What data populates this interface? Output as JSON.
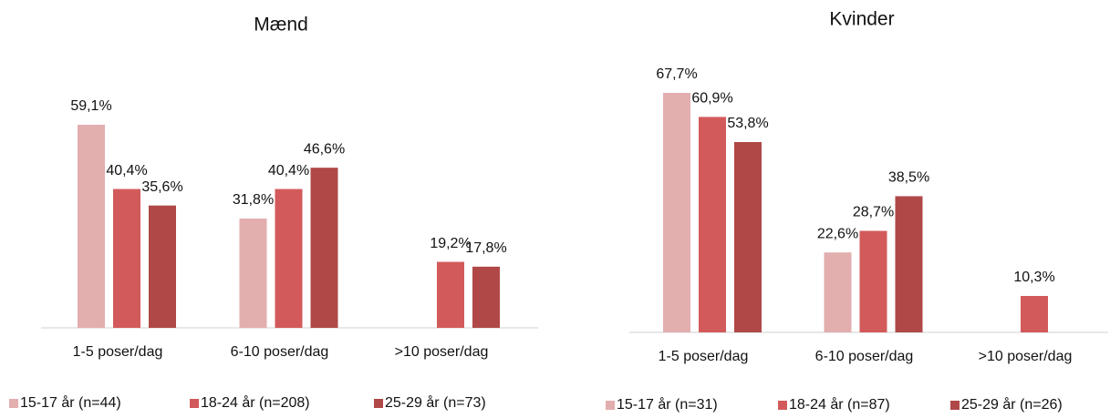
{
  "chart_data": [
    {
      "type": "bar",
      "title": "Mænd",
      "categories": [
        "1-5 poser/dag",
        "6-10 poser/dag",
        ">10 poser/dag"
      ],
      "series": [
        {
          "name": "15-17 år (n=44)",
          "color": "#e3aeae",
          "values": [
            59.1,
            31.8,
            null
          ],
          "value_labels": [
            "59,1%",
            "31,8%",
            null
          ]
        },
        {
          "name": "18-24 år (n=208)",
          "color": "#d35a5a",
          "values": [
            40.4,
            40.4,
            19.2
          ],
          "value_labels": [
            "40,4%",
            "40,4%",
            "19,2%"
          ]
        },
        {
          "name": "25-29 år (n=73)",
          "color": "#b04848",
          "values": [
            35.6,
            46.6,
            17.8
          ],
          "value_labels": [
            "35,6%",
            "46,6%",
            "17,8%"
          ]
        }
      ]
    },
    {
      "type": "bar",
      "title": "Kvinder",
      "categories": [
        "1-5 poser/dag",
        "6-10 poser/dag",
        ">10 poser/dag"
      ],
      "series": [
        {
          "name": "15-17 år (n=31)",
          "color": "#e3aeae",
          "values": [
            67.7,
            22.6,
            null
          ],
          "value_labels": [
            "67,7%",
            "22,6%",
            null
          ]
        },
        {
          "name": "18-24 år (n=87)",
          "color": "#d35a5a",
          "values": [
            60.9,
            28.7,
            10.3
          ],
          "value_labels": [
            "60,9%",
            "28,7%",
            "10,3%"
          ]
        },
        {
          "name": "25-29 år (n=26)",
          "color": "#b04848",
          "values": [
            53.8,
            38.5,
            null
          ],
          "value_labels": [
            "53,8%",
            "38,5%",
            null
          ]
        }
      ]
    }
  ]
}
